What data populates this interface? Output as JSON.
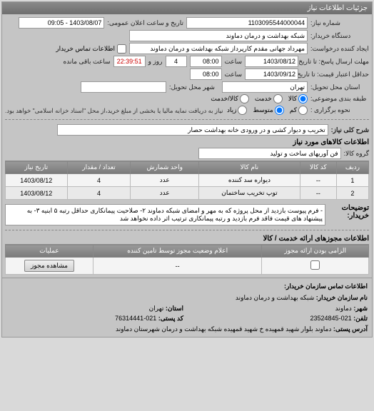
{
  "panel_title": "جزئیات اطلاعات نیاز",
  "fields": {
    "request_no_label": "شماره نیاز:",
    "request_no": "1103095544000044",
    "announce_label": "تاریخ و ساعت اعلان عمومی:",
    "announce_value": "1403/08/07 - 09:05",
    "buyer_label": "دستگاه خریدار:",
    "buyer_value": "شبکه بهداشت و درمان دماوند",
    "requester_label": "ایجاد کننده درخواست:",
    "requester_value": "مهرداد جهانی مقدم کارپرداز شبکه بهداشت و درمان دماوند",
    "buyer_contact_chk": "اطلاعات تماس خریدار",
    "deadline_send_label": "مهلت ارسال پاسخ: تا تاریخ:",
    "deadline_send_date": "1403/08/12",
    "time_label": "ساعت",
    "deadline_send_time": "08:00",
    "days_label_num": "4",
    "days_label": "روز و",
    "countdown": "22:39:51",
    "remaining": "ساعت باقی مانده",
    "min_valid_label": "حداقل اعتبار قیمت: تا تاریخ:",
    "min_valid_date": "1403/09/12",
    "min_valid_time": "08:00",
    "province_label": "استان محل تحویل:",
    "province": "تهران",
    "city_label": "شهر محل تحویل:",
    "city": "",
    "budget_label": "طبقه بندی موضوعی:",
    "budget_opts": {
      "goods": "کالا",
      "service": "خدمت",
      "both": "کالا/خدمت"
    },
    "priority_label": "نحوه برگزاری :",
    "priority_opts": {
      "low": "کم",
      "mid": "متوسط",
      "high": "زیاد"
    },
    "note1": "نیاز به دریافت نمایه مالیا یا بخشی از مبلغ خرید،از محل \"اسناد خزانه اسلامی\" خواهد بود.",
    "subject_label": "شرح کلی نیاز:",
    "subject": "تخریب و دیوار کشی و در ورودی خانه بهداشت حصار",
    "goods_section": "اطلاعات کالاهای مورد نیاز",
    "goods_group_label": "گروه کالا:",
    "goods_group": "فن آوریهای ساخت و تولید",
    "buyer_desc_label": "توضیحات خریدار:",
    "buyer_desc": "- فرم پیوست بازدید از محل پروژه که به مهر و امضای شبکه دماوند ۲- صلاحیت پیمانکاری حداقل رتبه ۵ ابنیه ۳- به پیشنهاد های قیمت فاقد فرم بازدید و رتبه پیمانکاری ترتیب اثر داده نخواهد شد",
    "auth_section": "اطلاعات مجوزهای ارائه خدمت / کالا",
    "view_auth_btn": "مشاهده مجوز",
    "footer_title": "اطلاعات تماس سازمان خریدار:",
    "org_name_lbl": "نام سازمان خریدار:",
    "org_name": "شبکه بهداشت و درمان دماوند",
    "f_city_lbl": "شهر:",
    "f_city": "دماوند",
    "f_prov_lbl": "استان:",
    "f_prov": "تهران",
    "f_tel_lbl": "تلفن:",
    "f_tel": "021-23524845",
    "f_fax_lbl": "کد پستی:",
    "f_fax": "021-76314441",
    "f_addr_lbl": "آدرس پستی:",
    "f_addr": "دماوند بلوار شهید قمهیده خ شهید قمهیده شبکه بهداشت و درمان شهرستان دماوند"
  },
  "goods_table": {
    "headers": [
      "ردیف",
      "کد کالا",
      "نام کالا",
      "واحد شمارش",
      "تعداد / مقدار",
      "تاریخ نیاز"
    ],
    "rows": [
      [
        "1",
        "--",
        "دیواره سد کننده",
        "عدد",
        "4",
        "1403/08/12"
      ],
      [
        "2",
        "--",
        "توپ تخریب ساختمان",
        "عدد",
        "4",
        "1403/08/12"
      ]
    ]
  },
  "auth_table": {
    "headers": [
      "الزامی بودن ارائه مجوز",
      "اعلام وضعیت مجوز توسط تامین کننده",
      "عملیات"
    ],
    "row": [
      "",
      "--",
      ""
    ]
  }
}
